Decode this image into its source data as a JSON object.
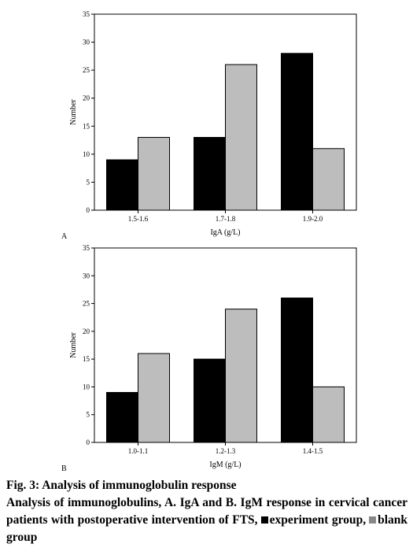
{
  "chart_data": [
    {
      "type": "bar",
      "panel": "A",
      "categories": [
        "1.5-1.6",
        "1.7-1.8",
        "1.9-2.0"
      ],
      "series": [
        {
          "values": [
            9,
            13,
            28
          ],
          "color": "#000000"
        },
        {
          "values": [
            13,
            26,
            11
          ],
          "color": "#bdbdbd"
        }
      ],
      "xlabel": "IgA (g/L)",
      "ylabel": "Number",
      "ylim": [
        0,
        35
      ],
      "yticks": [
        "0",
        "5",
        "10",
        "15",
        "20",
        "25",
        "30",
        "35"
      ],
      "grid": false
    },
    {
      "type": "bar",
      "panel": "B",
      "categories": [
        "1.0-1.1",
        "1.2-1.3",
        "1.4-1.5"
      ],
      "series": [
        {
          "values": [
            9,
            15,
            26
          ],
          "color": "#000000"
        },
        {
          "values": [
            16,
            24,
            10
          ],
          "color": "#bdbdbd"
        }
      ],
      "xlabel": "IgM (g/L)",
      "ylabel": "Number",
      "ylim": [
        0,
        35
      ],
      "yticks": [
        "0",
        "5",
        "10",
        "15",
        "20",
        "25",
        "30",
        "35"
      ],
      "grid": false
    }
  ],
  "caption": {
    "title": "Fig. 3: Analysis of immunoglobulin response",
    "body": "Analysis of immunoglobulins, A. IgA and B. IgM response in cervical cancer patients with postoperative intervention of FTS,",
    "legend_experiment": "experiment group,",
    "legend_blank": "blank group"
  }
}
